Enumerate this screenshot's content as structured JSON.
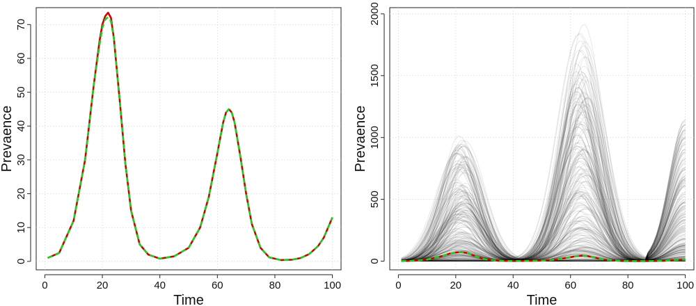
{
  "chart_data": [
    {
      "type": "line",
      "title": "",
      "xlabel": "Time",
      "ylabel": "Prevaence",
      "xlim": [
        -3,
        103
      ],
      "ylim": [
        -2.5,
        75
      ],
      "xticks": [
        0,
        20,
        40,
        60,
        80,
        100
      ],
      "yticks": [
        0,
        10,
        20,
        30,
        40,
        50,
        60,
        70
      ],
      "grid": true,
      "series": [
        {
          "color": "#cc0000",
          "style": "solid",
          "x": [
            1,
            5,
            10,
            14,
            17,
            19,
            20,
            21,
            22,
            23,
            24,
            26,
            28,
            30,
            33,
            36,
            40,
            45,
            50,
            54,
            57,
            60,
            62,
            63,
            64,
            65,
            66,
            68,
            70,
            72,
            75,
            78,
            82,
            86,
            89,
            92,
            95,
            97,
            100
          ],
          "y": [
            1,
            2.5,
            12,
            30,
            52,
            65,
            70,
            72.5,
            73.5,
            72,
            66,
            48,
            29,
            15,
            5,
            2,
            0.8,
            1.5,
            4,
            10,
            19,
            32,
            41,
            44,
            45,
            44,
            41,
            31,
            20,
            11,
            4,
            1.2,
            0.4,
            0.5,
            1,
            2.2,
            4.5,
            7,
            13
          ]
        },
        {
          "color": "#22cc22",
          "style": "dashed",
          "x": [
            1,
            5,
            10,
            14,
            17,
            19,
            20,
            21,
            22,
            23,
            24,
            26,
            28,
            30,
            33,
            36,
            40,
            45,
            50,
            54,
            57,
            60,
            62,
            63,
            64,
            65,
            66,
            68,
            70,
            72,
            75,
            78,
            82,
            86,
            89,
            92,
            95,
            97,
            100
          ],
          "y": [
            1,
            2.5,
            12,
            30,
            52,
            64,
            69,
            71.5,
            72.2,
            71,
            66,
            48,
            29,
            15,
            5,
            2,
            0.8,
            1.5,
            4,
            10,
            19,
            32,
            41,
            44,
            45,
            44,
            41,
            31,
            20,
            11,
            4,
            1.2,
            0.4,
            0.5,
            1,
            2.2,
            4.5,
            7,
            13
          ]
        }
      ]
    },
    {
      "type": "line",
      "title": "",
      "xlabel": "Time",
      "ylabel": "Prevaence",
      "xlim": [
        -3,
        103
      ],
      "ylim": [
        -70,
        2050
      ],
      "xticks": [
        0,
        20,
        40,
        60,
        80,
        100
      ],
      "yticks": [
        0,
        500,
        1000,
        1500,
        2000
      ],
      "grid": true,
      "ensemble": {
        "color": "#000000",
        "description_shape": "three waves peaking near t=22, t=64 and rising at t=100",
        "peak_times": [
          22,
          64,
          100
        ],
        "peak_max": [
          1020,
          1960,
          1150
        ]
      },
      "series": [
        {
          "color": "#cc0000",
          "style": "solid",
          "x": [
            1,
            5,
            10,
            15,
            18,
            20,
            22,
            24,
            26,
            30,
            35,
            40,
            50,
            55,
            60,
            62,
            64,
            66,
            68,
            72,
            78,
            85,
            92,
            100
          ],
          "y": [
            1,
            3,
            12,
            40,
            62,
            70,
            73,
            66,
            48,
            15,
            3,
            1,
            4,
            12,
            32,
            41,
            45,
            41,
            31,
            11,
            1.2,
            0.5,
            2.2,
            13
          ]
        },
        {
          "color": "#22cc22",
          "style": "dashed",
          "x": [
            1,
            5,
            10,
            15,
            18,
            20,
            22,
            24,
            26,
            30,
            35,
            40,
            50,
            55,
            60,
            62,
            64,
            66,
            68,
            72,
            78,
            85,
            92,
            100
          ],
          "y": [
            1,
            3,
            12,
            40,
            62,
            70,
            72,
            66,
            48,
            15,
            3,
            1,
            4,
            12,
            32,
            41,
            45,
            41,
            31,
            11,
            1.2,
            0.5,
            2.2,
            13
          ]
        }
      ]
    }
  ]
}
